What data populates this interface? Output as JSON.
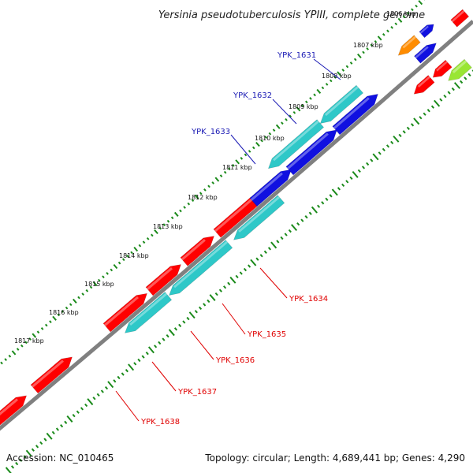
{
  "title": "Yersinia pseudotuberculosis YPIII, complete genome",
  "footer": {
    "accession": "Accession: NC_010465",
    "summary": "Topology: circular; Length: 4,689,441 bp; Genes: 4,290"
  },
  "colors": {
    "backbone": "#808080",
    "tick_marks": "#1a8a1a",
    "forward_strand_red": "#ff0000",
    "reverse_strand_cyan": "#2ec8c8",
    "blue_genes": "#1010e0",
    "orange_gene": "#ff8c00",
    "lime_gene": "#99e633",
    "blue_label": "#1a1ab4",
    "red_label": "#e00000"
  },
  "ticks": [
    {
      "label": "1806 kbp"
    },
    {
      "label": "1807 kbp"
    },
    {
      "label": "1808 kbp"
    },
    {
      "label": "1809 kbp"
    },
    {
      "label": "1810 kbp"
    },
    {
      "label": "1811 kbp"
    },
    {
      "label": "1812 kbp"
    },
    {
      "label": "1813 kbp"
    },
    {
      "label": "1814 kbp"
    },
    {
      "label": "1815 kbp"
    },
    {
      "label": "1816 kbp"
    },
    {
      "label": "1817 kbp"
    }
  ],
  "gene_labels": [
    {
      "text": "YPK_1631",
      "color": "blue"
    },
    {
      "text": "YPK_1632",
      "color": "blue"
    },
    {
      "text": "YPK_1633",
      "color": "blue"
    },
    {
      "text": "YPK_1634",
      "color": "red"
    },
    {
      "text": "YPK_1635",
      "color": "red"
    },
    {
      "text": "YPK_1636",
      "color": "red"
    },
    {
      "text": "YPK_1637",
      "color": "red"
    },
    {
      "text": "YPK_1638",
      "color": "red"
    }
  ]
}
